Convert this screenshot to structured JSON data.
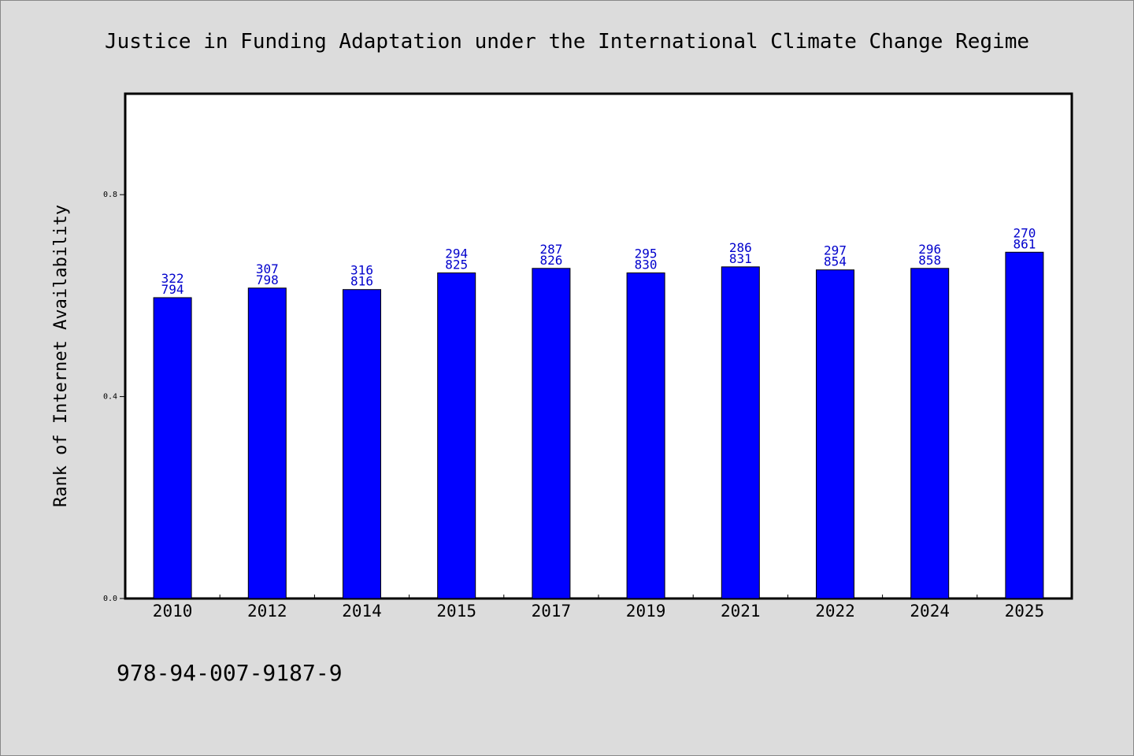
{
  "colors": {
    "background": "#dcdcdc",
    "plot_background": "#ffffff",
    "bar": "#0000ff",
    "bar_label": "#0000cc",
    "axis": "#000000"
  },
  "isbn": "978-94-007-9187-9",
  "chart_data": {
    "type": "bar",
    "title": "Justice in Funding Adaptation under the International Climate Change Regime",
    "xlabel": "",
    "ylabel": "Rank of Internet Availability",
    "ylim": [
      0,
      1.0
    ],
    "yticks": [
      {
        "value": 0.0,
        "label": "0.0"
      },
      {
        "value": 0.4,
        "label": "0.4"
      },
      {
        "value": 0.8,
        "label": "0.8"
      }
    ],
    "grid": false,
    "categories": [
      "2010",
      "2012",
      "2014",
      "2015",
      "2017",
      "2019",
      "2021",
      "2022",
      "2024",
      "2025"
    ],
    "values": [
      0.596,
      0.615,
      0.612,
      0.645,
      0.654,
      0.645,
      0.657,
      0.651,
      0.654,
      0.686
    ],
    "label_top": [
      "322",
      "307",
      "316",
      "294",
      "287",
      "295",
      "286",
      "297",
      "296",
      "270"
    ],
    "label_bottom": [
      "794",
      "798",
      "816",
      "825",
      "826",
      "830",
      "831",
      "854",
      "858",
      "861"
    ]
  }
}
